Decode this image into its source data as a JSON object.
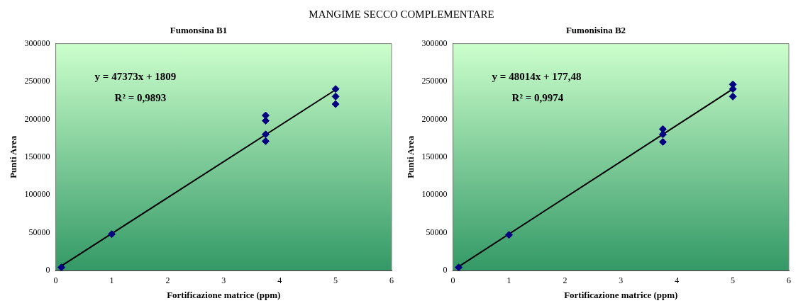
{
  "chart_data": [
    {
      "type": "scatter",
      "title": "Fumonsina B1",
      "xlabel": "Fortificazione matrice (ppm)",
      "ylabel": "Punti Area",
      "annotations": [
        "MANGIME SECCO COMPLEMENTARE",
        "y = 47373x + 1809",
        "R² = 0,9893"
      ],
      "xlim": [
        0,
        6
      ],
      "xticks": [
        0,
        1,
        2,
        3,
        4,
        5,
        6
      ],
      "ylim": [
        0,
        300000
      ],
      "yticks": [
        0,
        50000,
        100000,
        150000,
        200000,
        250000,
        300000
      ],
      "series": [
        {
          "type": "scatter",
          "marker": "diamond",
          "color": "#000080",
          "x": [
            0.1,
            1,
            3.75,
            3.75,
            3.75,
            3.75,
            5,
            5,
            5
          ],
          "values": [
            4000,
            48000,
            205000,
            198000,
            180000,
            171000,
            240000,
            230000,
            220000
          ]
        },
        {
          "type": "line",
          "marker": "none",
          "color": "#000000",
          "x": [
            0.1,
            5
          ],
          "values": [
            6000,
            239000
          ]
        }
      ]
    },
    {
      "type": "scatter",
      "title": "Fumonisina B2",
      "xlabel": "Fortificazione matrice (ppm)",
      "ylabel": "Punti Area",
      "annotations": [
        "y = 48014x + 177,48",
        "R² = 0,9974"
      ],
      "xlim": [
        0,
        6
      ],
      "xticks": [
        0,
        1,
        2,
        3,
        4,
        5,
        6
      ],
      "ylim": [
        0,
        300000
      ],
      "yticks": [
        0,
        50000,
        100000,
        150000,
        200000,
        250000,
        300000
      ],
      "series": [
        {
          "type": "scatter",
          "marker": "diamond",
          "color": "#000080",
          "x": [
            0.1,
            1,
            3.75,
            3.75,
            3.75,
            5,
            5,
            5
          ],
          "values": [
            4000,
            47000,
            187000,
            180000,
            170000,
            246000,
            240000,
            230000
          ]
        },
        {
          "type": "line",
          "marker": "none",
          "color": "#000000",
          "x": [
            0.1,
            5
          ],
          "values": [
            5000,
            240000
          ]
        }
      ]
    }
  ]
}
